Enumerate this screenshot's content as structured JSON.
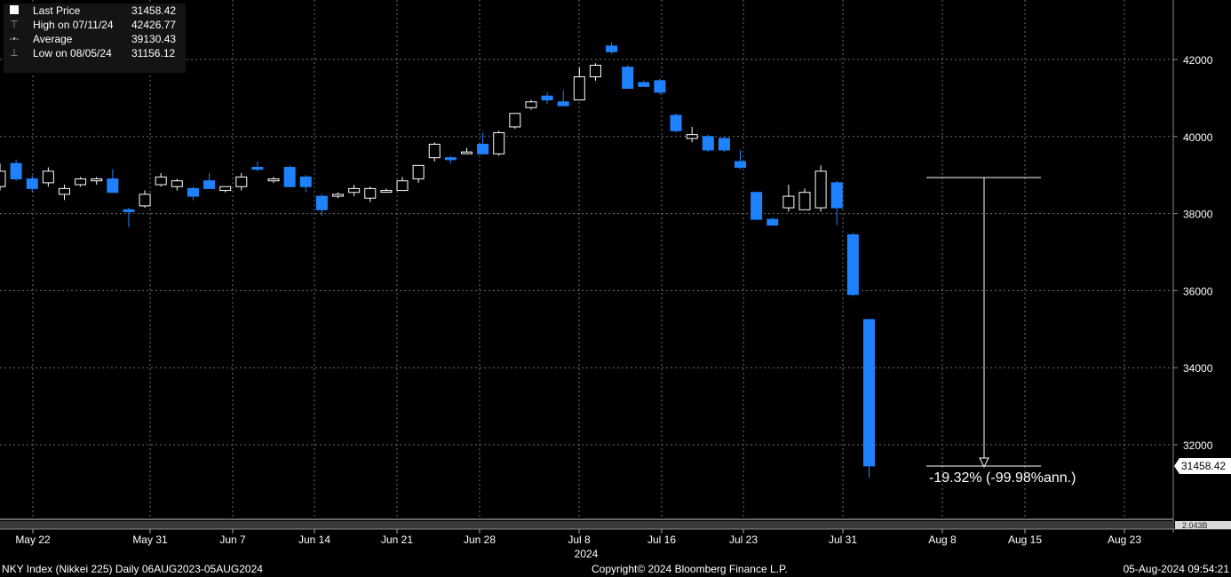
{
  "legend": {
    "items": [
      {
        "label": "Last Price",
        "value": "31458.42"
      },
      {
        "label": "High on 07/11/24",
        "value": "42426.77"
      },
      {
        "label": "Average",
        "value": "39130.43"
      },
      {
        "label": "Low on 08/05/24",
        "value": "31156.12"
      }
    ]
  },
  "annotation": {
    "text": "-19.32% (-99.98%ann.)"
  },
  "last_price_tag": "31458.42",
  "volume_axis_label": "2.043B",
  "footer": {
    "left": "NKY Index (Nikkei 225)  Daily 06AUG2023-05AUG2024",
    "center": "Copyright© 2024 Bloomberg Finance L.P.",
    "right": "05-Aug-2024 09:54:21"
  },
  "colors": {
    "up": "#ffffff",
    "down": "#1e82ff",
    "grid": "#6f6f6f",
    "background": "#000000"
  },
  "chart_data": {
    "type": "candlestick",
    "title": "",
    "ylim": [
      30500,
      43600
    ],
    "grid": true,
    "y_ticks": [
      32000,
      34000,
      36000,
      38000,
      40000,
      42000
    ],
    "x_tick_labels": [
      "May 22",
      "May 31",
      "Jun 7",
      "Jun 14",
      "Jun 21",
      "Jun 28",
      "Jul 8",
      "Jul 16",
      "Jul 23",
      "Jul 31",
      "Aug 8",
      "Aug 15",
      "Aug 23"
    ],
    "year_label": "2024",
    "candles": [
      {
        "o": 38700,
        "h": 39300,
        "l": 38600,
        "c": 39100
      },
      {
        "o": 39300,
        "h": 39400,
        "l": 38850,
        "c": 38900
      },
      {
        "o": 38900,
        "h": 39000,
        "l": 38550,
        "c": 38650
      },
      {
        "o": 38800,
        "h": 39200,
        "l": 38700,
        "c": 39100
      },
      {
        "o": 38500,
        "h": 38750,
        "l": 38350,
        "c": 38650
      },
      {
        "o": 38750,
        "h": 38950,
        "l": 38700,
        "c": 38900
      },
      {
        "o": 38850,
        "h": 38950,
        "l": 38750,
        "c": 38900
      },
      {
        "o": 38900,
        "h": 39150,
        "l": 38550,
        "c": 38550
      },
      {
        "o": 38100,
        "h": 38150,
        "l": 37650,
        "c": 38050
      },
      {
        "o": 38200,
        "h": 38600,
        "l": 38150,
        "c": 38500
      },
      {
        "o": 38750,
        "h": 39050,
        "l": 38700,
        "c": 38950
      },
      {
        "o": 38700,
        "h": 38900,
        "l": 38600,
        "c": 38850
      },
      {
        "o": 38650,
        "h": 38700,
        "l": 38350,
        "c": 38450
      },
      {
        "o": 38850,
        "h": 39050,
        "l": 38650,
        "c": 38650
      },
      {
        "o": 38600,
        "h": 38700,
        "l": 38550,
        "c": 38700
      },
      {
        "o": 38700,
        "h": 39050,
        "l": 38600,
        "c": 38950
      },
      {
        "o": 39200,
        "h": 39350,
        "l": 39100,
        "c": 39150
      },
      {
        "o": 38850,
        "h": 38950,
        "l": 38800,
        "c": 38900
      },
      {
        "o": 39200,
        "h": 39250,
        "l": 38700,
        "c": 38700
      },
      {
        "o": 38950,
        "h": 39000,
        "l": 38550,
        "c": 38700
      },
      {
        "o": 38450,
        "h": 38500,
        "l": 37950,
        "c": 38100
      },
      {
        "o": 38450,
        "h": 38550,
        "l": 38400,
        "c": 38500
      },
      {
        "o": 38550,
        "h": 38750,
        "l": 38450,
        "c": 38650
      },
      {
        "o": 38400,
        "h": 38700,
        "l": 38300,
        "c": 38650
      },
      {
        "o": 38600,
        "h": 38650,
        "l": 38550,
        "c": 38600
      },
      {
        "o": 38600,
        "h": 38950,
        "l": 38600,
        "c": 38850
      },
      {
        "o": 38900,
        "h": 39250,
        "l": 38800,
        "c": 39250
      },
      {
        "o": 39450,
        "h": 39850,
        "l": 39350,
        "c": 39800
      },
      {
        "o": 39450,
        "h": 39500,
        "l": 39300,
        "c": 39400
      },
      {
        "o": 39600,
        "h": 39700,
        "l": 39550,
        "c": 39600
      },
      {
        "o": 39800,
        "h": 40100,
        "l": 39550,
        "c": 39550
      },
      {
        "o": 39550,
        "h": 40150,
        "l": 39500,
        "c": 40100
      },
      {
        "o": 40250,
        "h": 40600,
        "l": 40200,
        "c": 40600
      },
      {
        "o": 40750,
        "h": 40950,
        "l": 40700,
        "c": 40900
      },
      {
        "o": 41050,
        "h": 41150,
        "l": 40850,
        "c": 40950
      },
      {
        "o": 40900,
        "h": 41200,
        "l": 40800,
        "c": 40800
      },
      {
        "o": 40950,
        "h": 41800,
        "l": 40950,
        "c": 41550
      },
      {
        "o": 41550,
        "h": 41900,
        "l": 41450,
        "c": 41850
      },
      {
        "o": 42350,
        "h": 42450,
        "l": 42150,
        "c": 42200
      },
      {
        "o": 41800,
        "h": 41850,
        "l": 41250,
        "c": 41250
      },
      {
        "o": 41400,
        "h": 41450,
        "l": 41300,
        "c": 41300
      },
      {
        "o": 41450,
        "h": 41500,
        "l": 41100,
        "c": 41150
      },
      {
        "o": 40550,
        "h": 40600,
        "l": 40100,
        "c": 40150
      },
      {
        "o": 39950,
        "h": 40250,
        "l": 39850,
        "c": 40050
      },
      {
        "o": 40000,
        "h": 40050,
        "l": 39600,
        "c": 39650
      },
      {
        "o": 39950,
        "h": 40000,
        "l": 39600,
        "c": 39650
      },
      {
        "o": 39350,
        "h": 39650,
        "l": 39150,
        "c": 39200
      },
      {
        "o": 38550,
        "h": 38550,
        "l": 37850,
        "c": 37850
      },
      {
        "o": 37850,
        "h": 37900,
        "l": 37700,
        "c": 37700
      },
      {
        "o": 38150,
        "h": 38750,
        "l": 38050,
        "c": 38450
      },
      {
        "o": 38100,
        "h": 38650,
        "l": 38100,
        "c": 38550
      },
      {
        "o": 38150,
        "h": 39250,
        "l": 38050,
        "c": 39100
      },
      {
        "o": 38800,
        "h": 38850,
        "l": 37700,
        "c": 38150
      },
      {
        "o": 37450,
        "h": 37500,
        "l": 35850,
        "c": 35900
      },
      {
        "o": 35250,
        "h": 35250,
        "l": 31150,
        "c": 31450
      }
    ]
  }
}
